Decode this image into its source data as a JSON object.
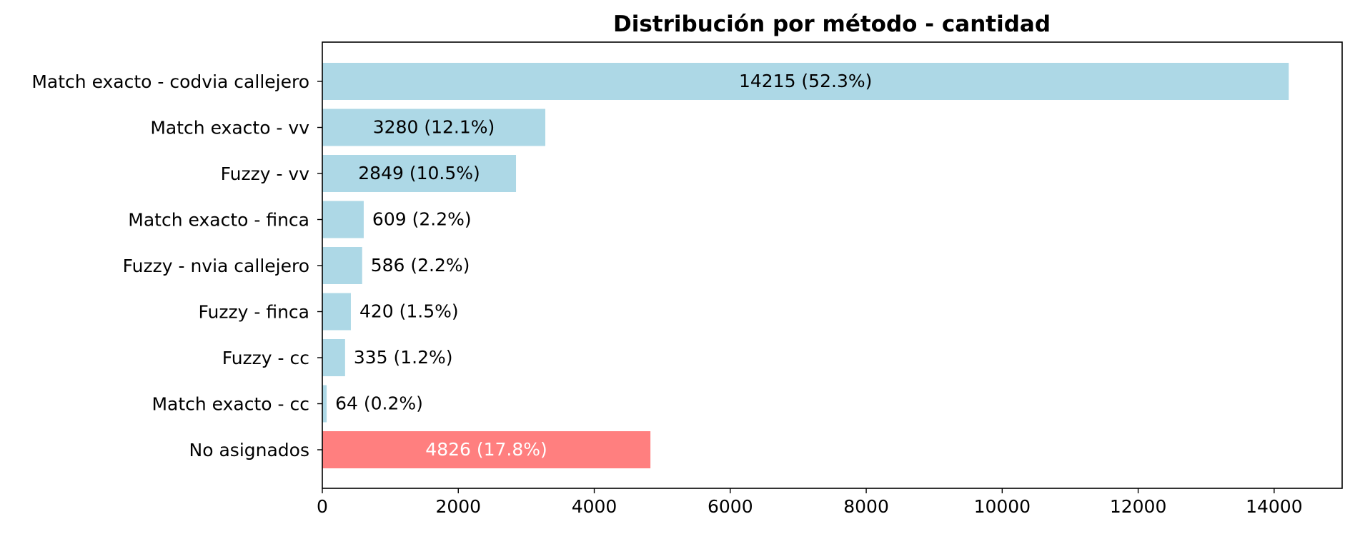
{
  "chart_data": {
    "type": "bar",
    "orientation": "horizontal",
    "title": "Distribución por método - cantidad",
    "xlabel": "",
    "ylabel": "",
    "xlim": [
      0,
      15000
    ],
    "x_ticks": [
      0,
      2000,
      4000,
      6000,
      8000,
      10000,
      12000,
      14000
    ],
    "grid": false,
    "categories": [
      "Match exacto - codvia callejero",
      "Match exacto - vv",
      "Fuzzy - vv",
      "Match exacto - finca",
      "Fuzzy - nvia callejero",
      "Fuzzy - finca",
      "Fuzzy - cc",
      "Match exacto - cc",
      "No asignados"
    ],
    "values": [
      14215,
      3280,
      2849,
      609,
      586,
      420,
      335,
      64,
      4826
    ],
    "data_labels": [
      "14215 (52.3%)",
      "3280 (12.1%)",
      "2849 (10.5%)",
      "609 (2.2%)",
      "586 (2.2%)",
      "420 (1.5%)",
      "335 (1.2%)",
      "64 (0.2%)",
      "4826 (17.8%)"
    ],
    "bar_colors": [
      "#add8e6",
      "#add8e6",
      "#add8e6",
      "#add8e6",
      "#add8e6",
      "#add8e6",
      "#add8e6",
      "#add8e6",
      "#ff7f7f"
    ],
    "label_inside": [
      true,
      true,
      true,
      false,
      false,
      false,
      false,
      false,
      true
    ],
    "label_colors": [
      "#000000",
      "#000000",
      "#000000",
      "#000000",
      "#000000",
      "#000000",
      "#000000",
      "#000000",
      "#ffffff"
    ]
  }
}
